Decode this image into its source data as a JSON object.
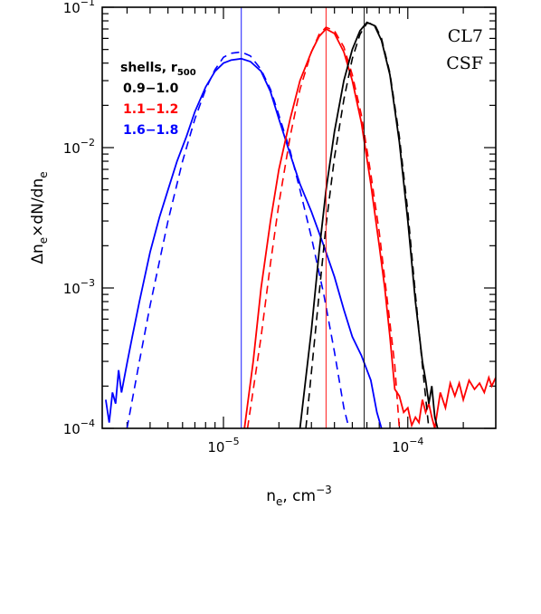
{
  "chart_data": {
    "type": "line",
    "xlabel": "n",
    "xlabel_sub": "e",
    "xlabel_unit": ", cm",
    "xlabel_unit_sup": "−3",
    "ylabel": "Δn",
    "ylabel_sub1": "e",
    "ylabel_mid": "×dN/dn",
    "ylabel_sub2": "e",
    "xscale": "log",
    "yscale": "log",
    "xlim": [
      2.2e-06,
      0.0003
    ],
    "ylim": [
      0.0001,
      0.1
    ],
    "x_ticks": [
      {
        "value": 1e-05,
        "base": "10",
        "exp": "−5"
      },
      {
        "value": 0.0001,
        "base": "10",
        "exp": "−4"
      }
    ],
    "y_ticks": [
      {
        "value": 0.0001,
        "base": "10",
        "exp": "−4"
      },
      {
        "value": 0.001,
        "base": "10",
        "exp": "−3"
      },
      {
        "value": 0.01,
        "base": "10",
        "exp": "−2"
      },
      {
        "value": 0.1,
        "base": "10",
        "exp": "−1"
      }
    ],
    "annotations": [
      "CL7",
      "CSF"
    ],
    "legend": {
      "title": "shells, r",
      "title_sub": "500",
      "placement": "top-left",
      "entries": [
        {
          "label": "0.9−1.0",
          "color": "#000000"
        },
        {
          "label": "1.1−1.2",
          "color": "#ff0000"
        },
        {
          "label": "1.6−1.8",
          "color": "#0000ff"
        }
      ]
    },
    "series": [
      {
        "color": "#0000ff",
        "median": 1.25e-05,
        "solid": [
          [
            2.3e-06,
            0.00016
          ],
          [
            2.4e-06,
            0.00011
          ],
          [
            2.5e-06,
            0.00018
          ],
          [
            2.6e-06,
            0.00015
          ],
          [
            2.7e-06,
            0.00026
          ],
          [
            2.8e-06,
            0.00018
          ],
          [
            3e-06,
            0.00029
          ],
          [
            3.2e-06,
            0.00045
          ],
          [
            3.5e-06,
            0.0008
          ],
          [
            4e-06,
            0.0018
          ],
          [
            4.5e-06,
            0.0032
          ],
          [
            5e-06,
            0.005
          ],
          [
            5.6e-06,
            0.008
          ],
          [
            6.3e-06,
            0.012
          ],
          [
            7e-06,
            0.018
          ],
          [
            8e-06,
            0.027
          ],
          [
            9e-06,
            0.035
          ],
          [
            1e-05,
            0.04
          ],
          [
            1.1e-05,
            0.042
          ],
          [
            1.25e-05,
            0.043
          ],
          [
            1.4e-05,
            0.041
          ],
          [
            1.6e-05,
            0.035
          ],
          [
            1.8e-05,
            0.025
          ],
          [
            2e-05,
            0.016
          ],
          [
            2.3e-05,
            0.009
          ],
          [
            2.6e-05,
            0.0055
          ],
          [
            3e-05,
            0.0035
          ],
          [
            3.5e-05,
            0.002
          ],
          [
            4e-05,
            0.0012
          ],
          [
            4.5e-05,
            0.0007
          ],
          [
            5e-05,
            0.00045
          ],
          [
            5.6e-05,
            0.00033
          ],
          [
            6.3e-05,
            0.00022
          ],
          [
            6.8e-05,
            0.00013
          ],
          [
            7.2e-05,
            0.0001
          ]
        ],
        "dashed": [
          [
            3e-06,
            0.0001
          ],
          [
            3.5e-06,
            0.0003
          ],
          [
            4e-06,
            0.00075
          ],
          [
            5e-06,
            0.003
          ],
          [
            6e-06,
            0.008
          ],
          [
            7e-06,
            0.016
          ],
          [
            8e-06,
            0.026
          ],
          [
            9e-06,
            0.036
          ],
          [
            1e-05,
            0.044
          ],
          [
            1.1e-05,
            0.047
          ],
          [
            1.25e-05,
            0.048
          ],
          [
            1.4e-05,
            0.045
          ],
          [
            1.6e-05,
            0.036
          ],
          [
            1.8e-05,
            0.026
          ],
          [
            2e-05,
            0.017
          ],
          [
            2.3e-05,
            0.0095
          ],
          [
            2.6e-05,
            0.005
          ],
          [
            3e-05,
            0.0023
          ],
          [
            3.5e-05,
            0.0009
          ],
          [
            4e-05,
            0.00035
          ],
          [
            4.5e-05,
            0.00014
          ],
          [
            4.8e-05,
            0.0001
          ]
        ]
      },
      {
        "color": "#ff0000",
        "median": 3.6e-05,
        "solid": [
          [
            1.3e-05,
            0.0001
          ],
          [
            1.45e-05,
            0.0003
          ],
          [
            1.6e-05,
            0.001
          ],
          [
            1.8e-05,
            0.003
          ],
          [
            2e-05,
            0.007
          ],
          [
            2.3e-05,
            0.016
          ],
          [
            2.6e-05,
            0.03
          ],
          [
            3e-05,
            0.048
          ],
          [
            3.3e-05,
            0.062
          ],
          [
            3.6e-05,
            0.07
          ],
          [
            4e-05,
            0.065
          ],
          [
            4.5e-05,
            0.048
          ],
          [
            5e-05,
            0.03
          ],
          [
            5.6e-05,
            0.015
          ],
          [
            6.3e-05,
            0.0055
          ],
          [
            7e-05,
            0.002
          ],
          [
            7.5e-05,
            0.001
          ],
          [
            8e-05,
            0.00045
          ],
          [
            8.5e-05,
            0.00019
          ],
          [
            9e-05,
            0.00017
          ],
          [
            9.5e-05,
            0.00013
          ],
          [
            0.0001,
            0.00014
          ],
          [
            0.000105,
            0.000105
          ],
          [
            0.00011,
            0.00012
          ],
          [
            0.000115,
            0.00011
          ],
          [
            0.00012,
            0.00016
          ],
          [
            0.000125,
            0.00013
          ],
          [
            0.00013,
            0.00015
          ],
          [
            0.000135,
            0.00012
          ],
          [
            0.00014,
            0.0001
          ],
          [
            0.00015,
            0.00018
          ],
          [
            0.00016,
            0.00014
          ],
          [
            0.00017,
            0.00021
          ],
          [
            0.00018,
            0.00017
          ],
          [
            0.00019,
            0.00021
          ],
          [
            0.0002,
            0.00016
          ],
          [
            0.000215,
            0.00022
          ],
          [
            0.00023,
            0.00019
          ],
          [
            0.000245,
            0.00021
          ],
          [
            0.00026,
            0.00018
          ],
          [
            0.000275,
            0.00023
          ],
          [
            0.000285,
            0.0002
          ],
          [
            0.0003,
            0.00023
          ]
        ],
        "dashed": [
          [
            1.35e-05,
            0.0001
          ],
          [
            1.6e-05,
            0.00045
          ],
          [
            1.8e-05,
            0.0015
          ],
          [
            2e-05,
            0.004
          ],
          [
            2.3e-05,
            0.012
          ],
          [
            2.6e-05,
            0.026
          ],
          [
            3e-05,
            0.048
          ],
          [
            3.3e-05,
            0.064
          ],
          [
            3.6e-05,
            0.072
          ],
          [
            4e-05,
            0.068
          ],
          [
            4.5e-05,
            0.052
          ],
          [
            5e-05,
            0.033
          ],
          [
            5.6e-05,
            0.017
          ],
          [
            6.3e-05,
            0.0065
          ],
          [
            7e-05,
            0.0025
          ],
          [
            7.8e-05,
            0.00075
          ],
          [
            8.5e-05,
            0.00028
          ],
          [
            9e-05,
            0.0001
          ]
        ]
      },
      {
        "color": "#000000",
        "median": 5.8e-05,
        "solid": [
          [
            2.6e-05,
            0.0001
          ],
          [
            2.8e-05,
            0.00023
          ],
          [
            3e-05,
            0.0005
          ],
          [
            3.3e-05,
            0.0018
          ],
          [
            3.6e-05,
            0.005
          ],
          [
            4e-05,
            0.013
          ],
          [
            4.5e-05,
            0.03
          ],
          [
            5e-05,
            0.05
          ],
          [
            5.5e-05,
            0.068
          ],
          [
            6e-05,
            0.078
          ],
          [
            6.6e-05,
            0.074
          ],
          [
            7.2e-05,
            0.058
          ],
          [
            8e-05,
            0.033
          ],
          [
            9e-05,
            0.011
          ],
          [
            0.0001,
            0.003
          ],
          [
            0.00011,
            0.0008
          ],
          [
            0.00012,
            0.0003
          ],
          [
            0.000125,
            0.00022
          ],
          [
            0.00013,
            0.00015
          ],
          [
            0.000135,
            0.0002
          ],
          [
            0.00014,
            0.00012
          ],
          [
            0.000145,
            0.0001
          ]
        ],
        "dashed": [
          [
            2.8e-05,
            0.0001
          ],
          [
            3e-05,
            0.00025
          ],
          [
            3.3e-05,
            0.0009
          ],
          [
            3.6e-05,
            0.0028
          ],
          [
            4e-05,
            0.0085
          ],
          [
            4.5e-05,
            0.022
          ],
          [
            5e-05,
            0.043
          ],
          [
            5.5e-05,
            0.064
          ],
          [
            6e-05,
            0.077
          ],
          [
            6.6e-05,
            0.076
          ],
          [
            7.2e-05,
            0.06
          ],
          [
            8e-05,
            0.034
          ],
          [
            9e-05,
            0.012
          ],
          [
            0.0001,
            0.0035
          ],
          [
            0.00011,
            0.0009
          ],
          [
            0.00012,
            0.00028
          ],
          [
            0.00013,
            0.0001
          ]
        ]
      }
    ]
  }
}
